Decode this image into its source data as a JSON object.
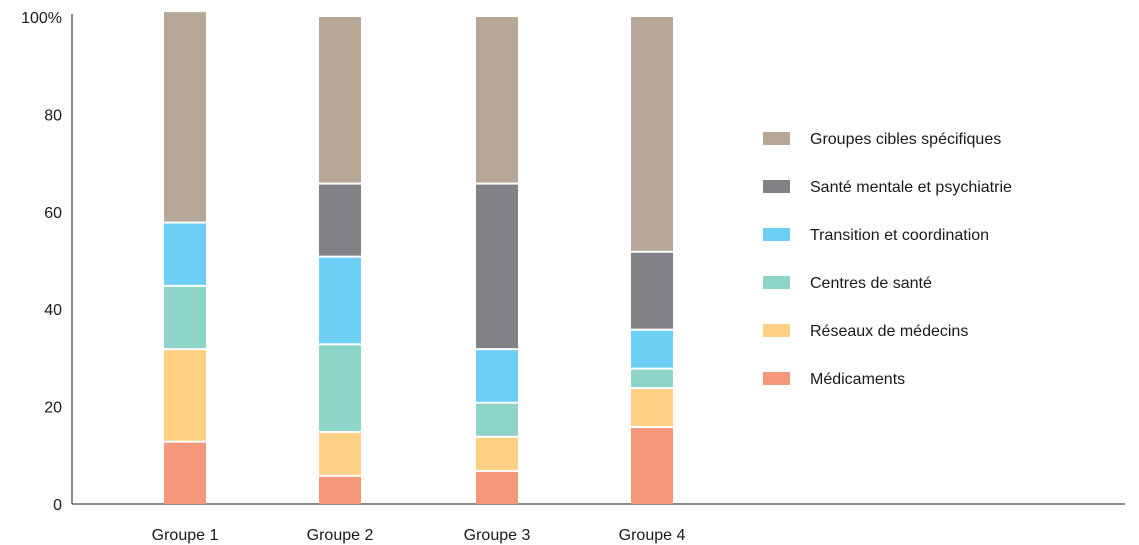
{
  "chart_data": {
    "type": "bar",
    "stacked": true,
    "percent": true,
    "categories": [
      "Groupe 1",
      "Groupe 2",
      "Groupe 3",
      "Groupe 4"
    ],
    "ylim": [
      0,
      100
    ],
    "yticks": [
      "0",
      "20",
      "40",
      "60",
      "80",
      "100%"
    ],
    "ytick_values": [
      0,
      20,
      40,
      60,
      80,
      100
    ],
    "legend_position": "right",
    "series": [
      {
        "name": "Médicaments",
        "color": "#f4977a",
        "values": [
          13,
          6,
          7,
          16
        ]
      },
      {
        "name": "Réseaux de médecins",
        "color": "#fdd084",
        "values": [
          19,
          9,
          7,
          8
        ]
      },
      {
        "name": "Centres de santé",
        "color": "#8ed4c8",
        "values": [
          13,
          18,
          7,
          4
        ]
      },
      {
        "name": "Transition et coordination",
        "color": "#6dcff6",
        "values": [
          13,
          18,
          11,
          8
        ]
      },
      {
        "name": "Santé mentale et psychiatrie",
        "color": "#808285",
        "values": [
          0,
          15,
          34,
          16
        ]
      },
      {
        "name": "Groupes cibles spécifiques",
        "color": "#b7a797",
        "values": [
          43,
          34,
          34,
          48
        ]
      }
    ]
  }
}
